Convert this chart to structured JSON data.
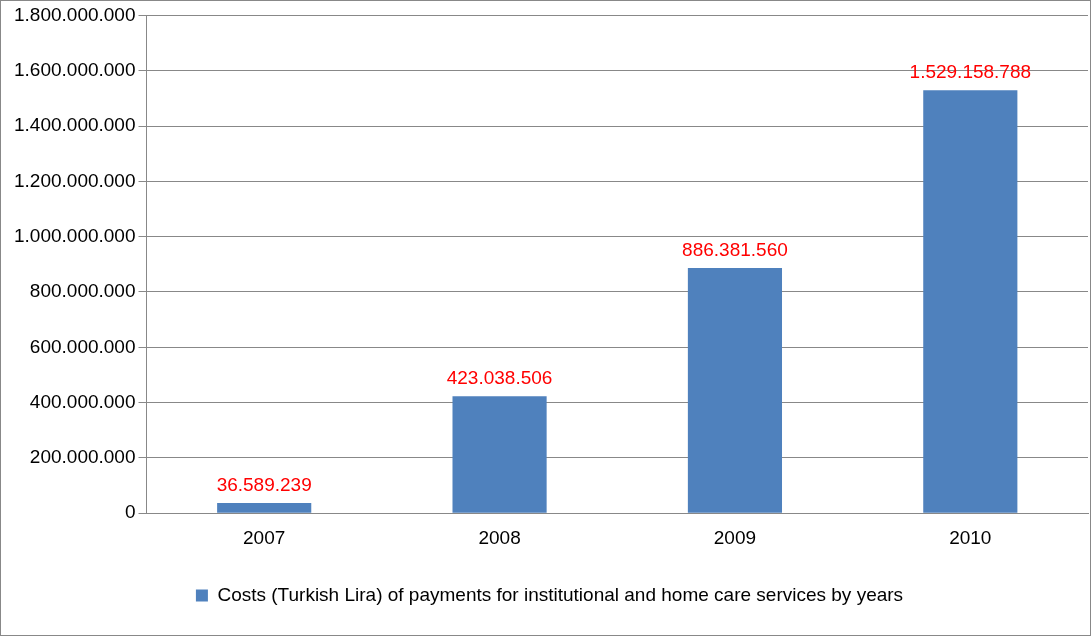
{
  "chart_data": {
    "type": "bar",
    "categories": [
      "2007",
      "2008",
      "2009",
      "2010"
    ],
    "series": [
      {
        "name": "Costs (Turkish Lira) of payments for institutional and home care services by years",
        "color": "#4f81bd",
        "values": [
          36589239,
          423038506,
          886381560,
          1529158788
        ],
        "value_labels": [
          "36.589.239",
          "423.038.506",
          "886.381.560",
          "1.529.158.788"
        ]
      }
    ],
    "ylim": [
      0,
      1800000000
    ],
    "yticks": [
      {
        "value": 0,
        "label": "0"
      },
      {
        "value": 200000000,
        "label": "200.000.000"
      },
      {
        "value": 400000000,
        "label": "400.000.000"
      },
      {
        "value": 600000000,
        "label": "600.000.000"
      },
      {
        "value": 800000000,
        "label": "800.000.000"
      },
      {
        "value": 1000000000,
        "label": "1.000.000.000"
      },
      {
        "value": 1200000000,
        "label": "1.200.000.000"
      },
      {
        "value": 1400000000,
        "label": "1.400.000.000"
      },
      {
        "value": 1600000000,
        "label": "1.600.000.000"
      },
      {
        "value": 1800000000,
        "label": "1.800.000.000"
      }
    ],
    "grid": "y",
    "legend": "bottom"
  }
}
